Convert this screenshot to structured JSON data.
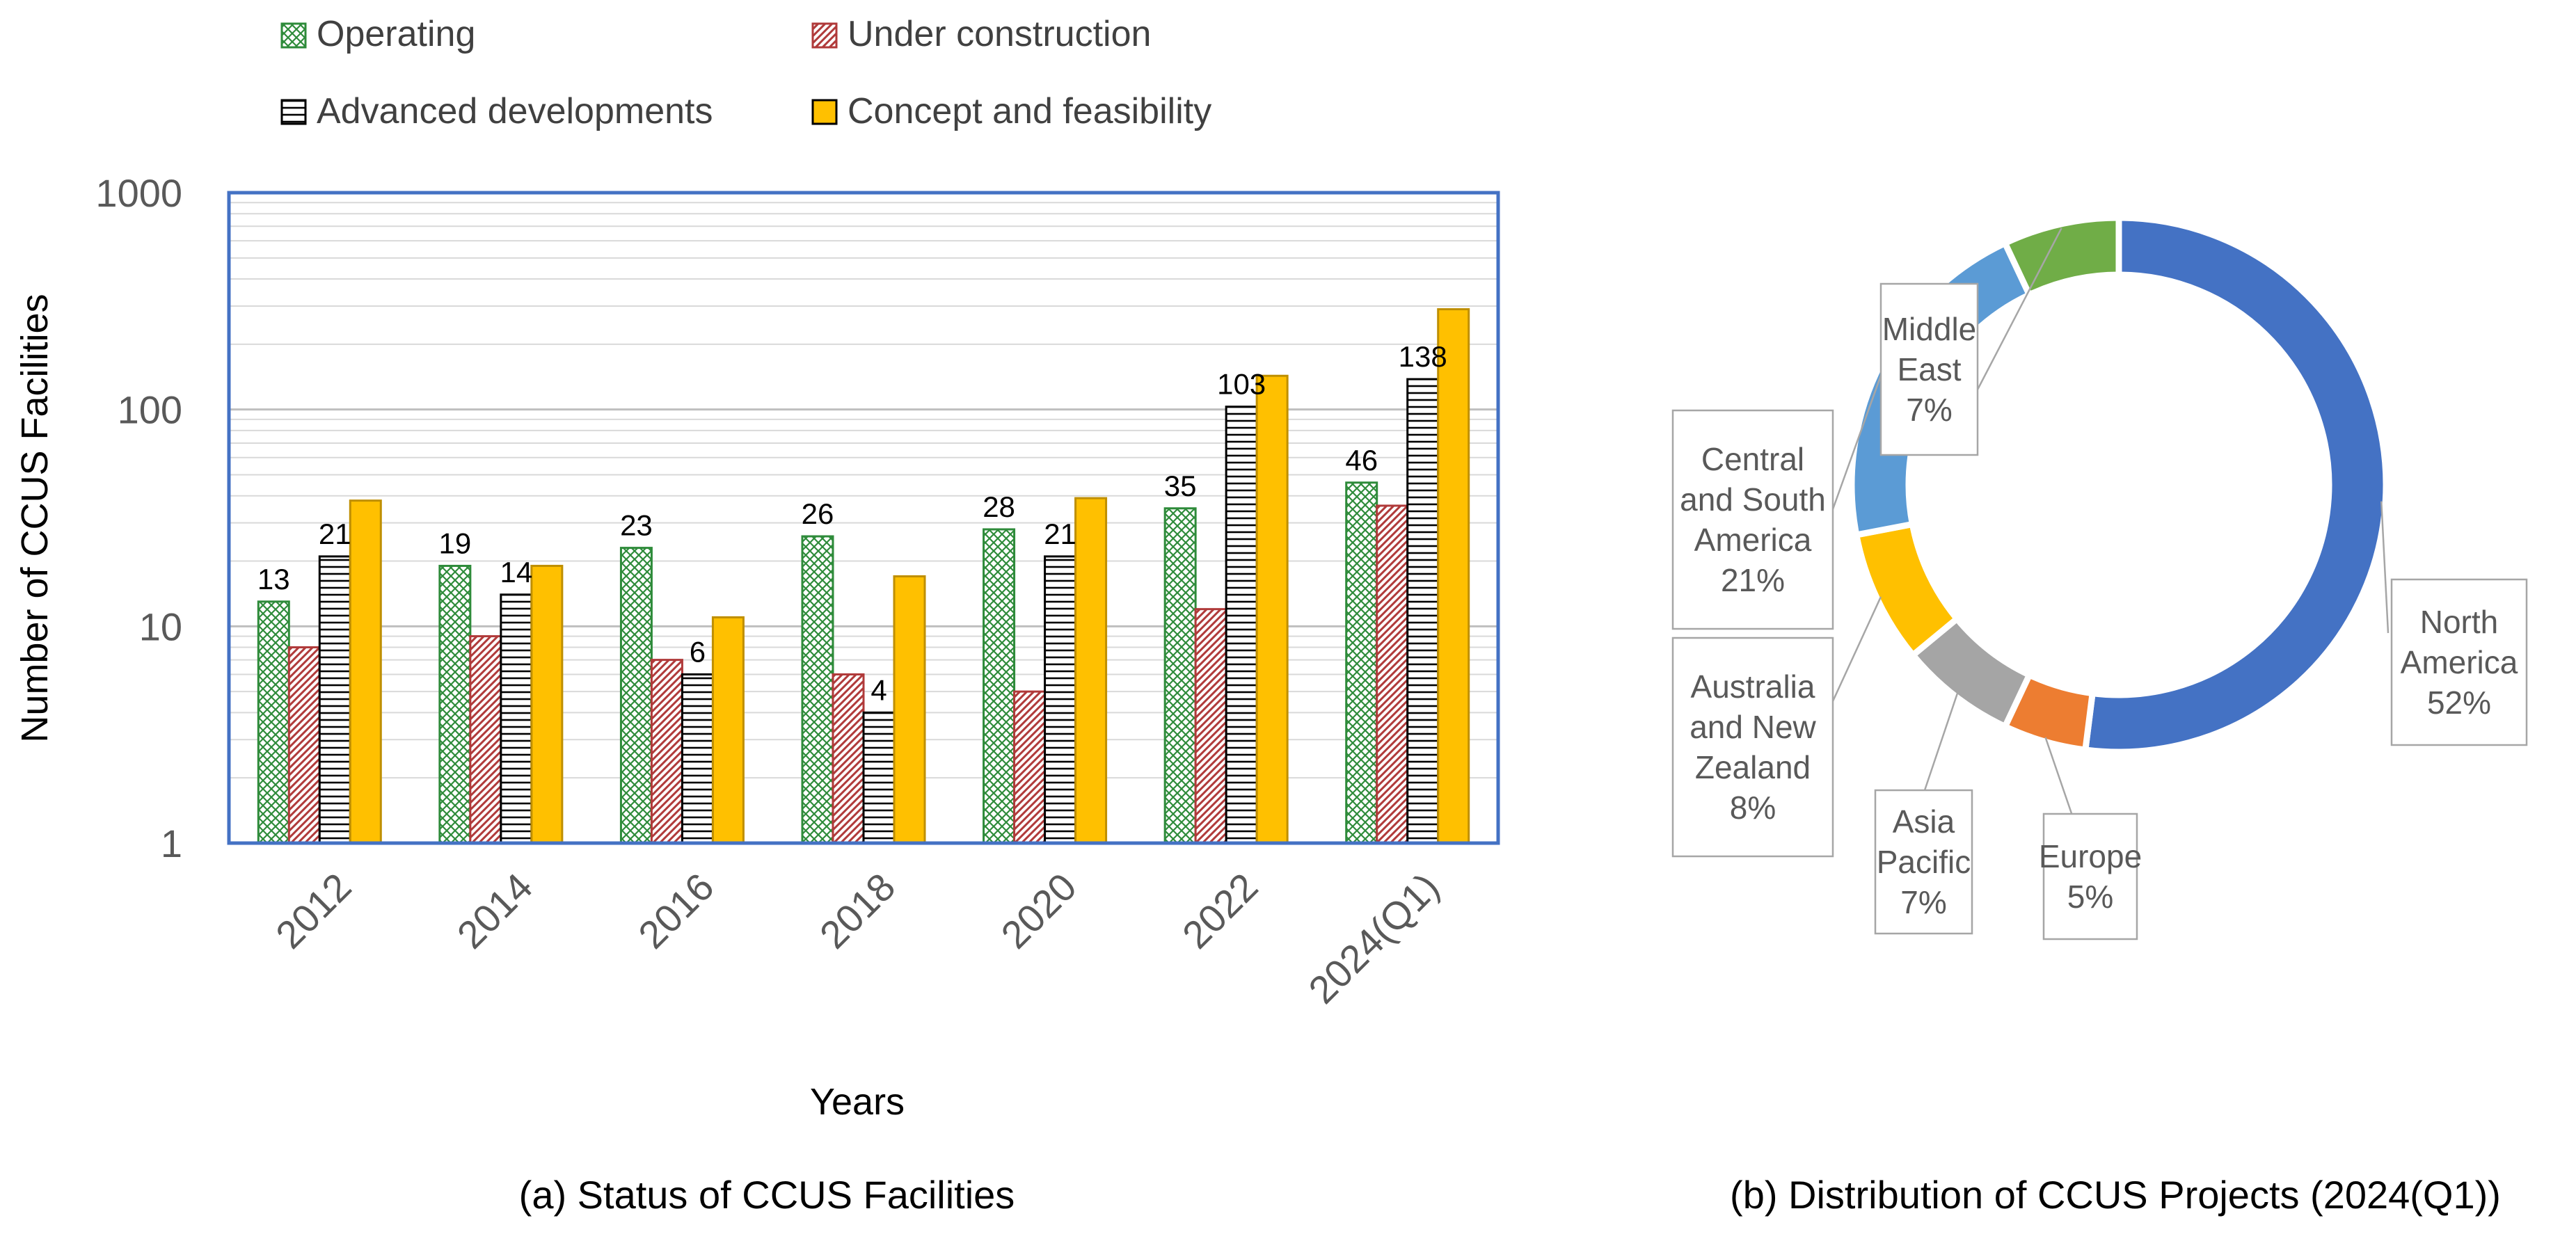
{
  "chart_data": [
    {
      "type": "bar",
      "scale": "log",
      "title": "",
      "caption": "(a) Status of CCUS Facilities",
      "xlabel": "Years",
      "ylabel": "Number of CCUS Facilities",
      "ylim": [
        1,
        1000
      ],
      "yticks": [
        "1",
        "10",
        "100",
        "1000"
      ],
      "grid": "minor-and-major-horizontal",
      "legend_position": "top",
      "categories": [
        "2012",
        "2014",
        "2016",
        "2018",
        "2020",
        "2022",
        "2024(Q1)"
      ],
      "series": [
        {
          "name": "Operating",
          "values": [
            13,
            19,
            23,
            26,
            28,
            35,
            46
          ],
          "labels": [
            "13",
            "19",
            "23",
            "26",
            "28",
            "35",
            "46"
          ],
          "color": "#2e8b3a",
          "pattern": "crosshatch"
        },
        {
          "name": "Under construction",
          "values": [
            8,
            9,
            7,
            6,
            5,
            12,
            36
          ],
          "labels": [
            "",
            "",
            "",
            "",
            "",
            "",
            ""
          ],
          "color": "#c0504d",
          "pattern": "diagonal"
        },
        {
          "name": "Advanced developments",
          "values": [
            21,
            14,
            6,
            4,
            21,
            103,
            138
          ],
          "labels": [
            "21",
            "14",
            "6",
            "4",
            "21",
            "103",
            "138"
          ],
          "color": "#000000",
          "pattern": "horizontal"
        },
        {
          "name": "Concept and feasibility",
          "values": [
            38,
            19,
            11,
            17,
            39,
            143,
            290
          ],
          "labels": [
            "",
            "",
            "",
            "",
            "",
            "",
            ""
          ],
          "color": "#ffc000",
          "pattern": "solid"
        }
      ]
    },
    {
      "type": "pie",
      "variant": "doughnut",
      "caption": "(b) Distribution of CCUS Projects (2024(Q1))",
      "slices": [
        {
          "name": "North America",
          "lines": [
            "North",
            "America",
            "52%"
          ],
          "value": 52,
          "color": "#4472c4"
        },
        {
          "name": "Europe",
          "lines": [
            "Europe",
            "5%"
          ],
          "value": 5,
          "color": "#ed7d31"
        },
        {
          "name": "Asia Pacific",
          "lines": [
            "Asia",
            "Pacific",
            "7%"
          ],
          "value": 7,
          "color": "#a5a5a5"
        },
        {
          "name": "Australia and New Zealand",
          "lines": [
            "Australia",
            "and New",
            "Zealand",
            "8%"
          ],
          "value": 8,
          "color": "#ffc000"
        },
        {
          "name": "Central and South America",
          "lines": [
            "Central",
            "and South",
            "America",
            "21%"
          ],
          "value": 21,
          "color": "#5b9bd5"
        },
        {
          "name": "Middle East",
          "lines": [
            "Middle",
            "East",
            "7%"
          ],
          "value": 7,
          "color": "#70ad47"
        }
      ]
    }
  ]
}
